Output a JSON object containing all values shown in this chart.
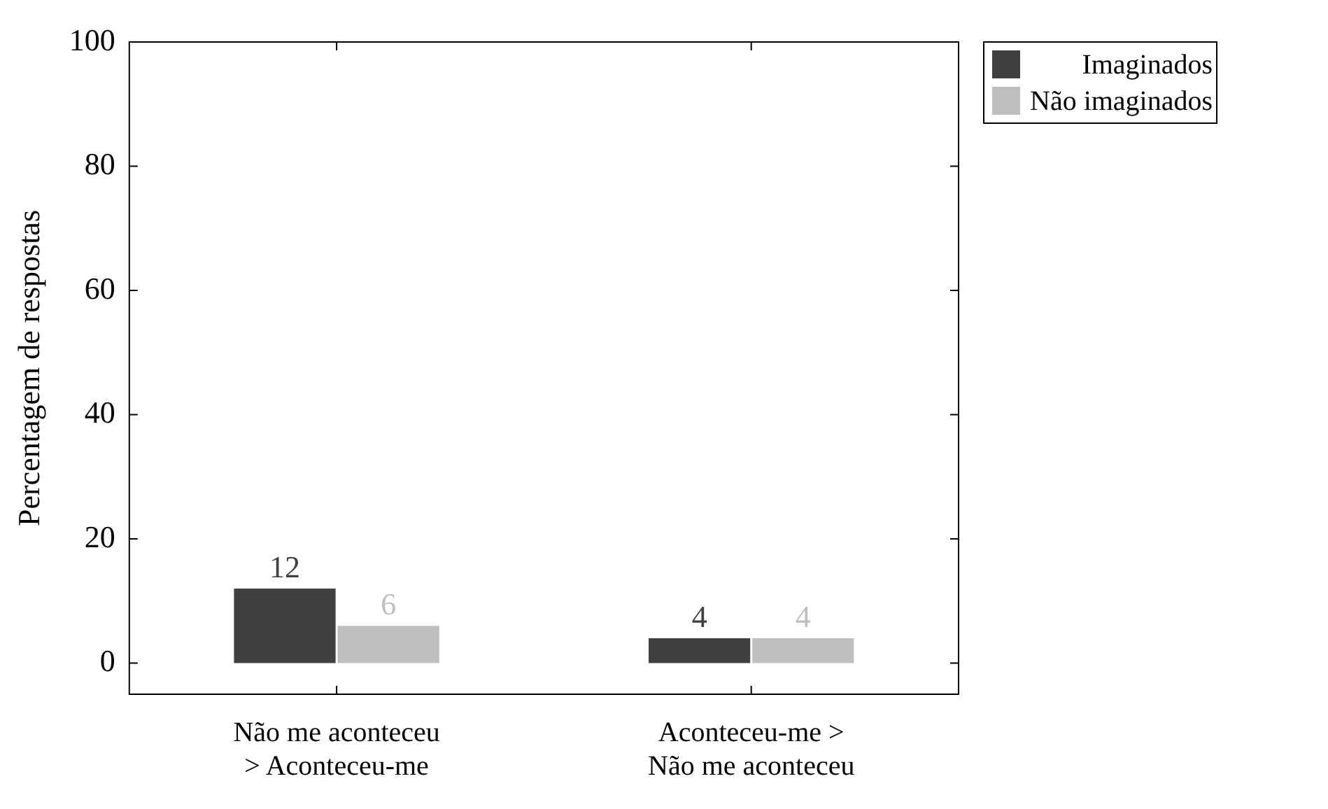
{
  "chart_data": {
    "type": "bar",
    "ylabel": "Percentagem de respostas",
    "categories": [
      "Não me aconteceu > Aconteceu-me",
      "Aconteceu-me > Não me aconteceu"
    ],
    "series": [
      {
        "name": "Imaginados",
        "color": "#404040",
        "values": [
          12,
          4
        ]
      },
      {
        "name": "Não imaginados",
        "color": "#bfbfbf",
        "values": [
          6,
          4
        ]
      }
    ],
    "ylim": [
      -5,
      100
    ],
    "yticks": [
      0,
      20,
      40,
      60,
      80,
      100
    ],
    "grid": false,
    "legend": "top right",
    "data_labels": true
  }
}
